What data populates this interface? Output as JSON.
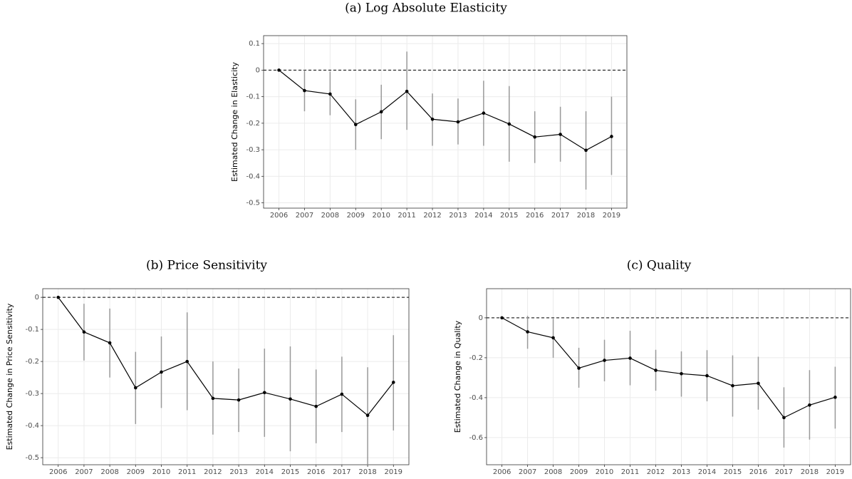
{
  "chart_data": [
    {
      "type": "line",
      "title": "(a) Log Absolute Elasticity",
      "y_label": "Estimated Change in Elasticity",
      "x": [
        2006,
        2007,
        2008,
        2009,
        2010,
        2011,
        2012,
        2013,
        2014,
        2015,
        2016,
        2017,
        2018,
        2019
      ],
      "series": [
        {
          "color": "#000000",
          "error_color": "#999999",
          "values": [
            0,
            -0.077,
            -0.09,
            -0.205,
            -0.157,
            -0.08,
            -0.185,
            -0.195,
            -0.162,
            -0.203,
            -0.252,
            -0.242,
            -0.302,
            -0.25
          ],
          "lower": [
            0,
            -0.155,
            -0.17,
            -0.3,
            -0.26,
            -0.225,
            -0.285,
            -0.28,
            -0.285,
            -0.345,
            -0.35,
            -0.345,
            -0.45,
            -0.395
          ],
          "upper": [
            0,
            0,
            -0.005,
            -0.11,
            -0.055,
            0.07,
            -0.088,
            -0.107,
            -0.04,
            -0.06,
            -0.155,
            -0.138,
            -0.155,
            -0.1
          ]
        }
      ],
      "xlim": [
        2005.4,
        2019.6
      ],
      "xticks": [
        2006,
        2007,
        2008,
        2009,
        2010,
        2011,
        2012,
        2013,
        2014,
        2015,
        2016,
        2017,
        2018,
        2019
      ],
      "ylim": [
        -0.52,
        0.13
      ],
      "yticks": [
        0.1,
        0,
        -0.1,
        -0.2,
        -0.3,
        -0.4,
        -0.5
      ],
      "reference_line": 0,
      "grid": true
    },
    {
      "type": "line",
      "title": "(b) Price Sensitivity",
      "y_label": "Estimated Change in Price Sensitivity",
      "x": [
        2006,
        2007,
        2008,
        2009,
        2010,
        2011,
        2012,
        2013,
        2014,
        2015,
        2016,
        2017,
        2018,
        2019
      ],
      "series": [
        {
          "color": "#000000",
          "error_color": "#999999",
          "values": [
            0,
            -0.108,
            -0.142,
            -0.282,
            -0.233,
            -0.2,
            -0.315,
            -0.32,
            -0.297,
            -0.317,
            -0.34,
            -0.302,
            -0.368,
            -0.265
          ],
          "lower": [
            0,
            -0.197,
            -0.25,
            -0.395,
            -0.345,
            -0.352,
            -0.428,
            -0.42,
            -0.435,
            -0.48,
            -0.455,
            -0.42,
            -0.52,
            -0.415
          ],
          "upper": [
            0,
            -0.02,
            -0.035,
            -0.17,
            -0.122,
            -0.047,
            -0.2,
            -0.222,
            -0.16,
            -0.153,
            -0.225,
            -0.185,
            -0.218,
            -0.118
          ]
        }
      ],
      "xlim": [
        2005.4,
        2019.6
      ],
      "xticks": [
        2006,
        2007,
        2008,
        2009,
        2010,
        2011,
        2012,
        2013,
        2014,
        2015,
        2016,
        2017,
        2018,
        2019
      ],
      "ylim": [
        -0.522,
        0.027
      ],
      "yticks": [
        0,
        -0.1,
        -0.2,
        -0.3,
        -0.4,
        -0.5
      ],
      "reference_line": 0,
      "grid": true
    },
    {
      "type": "line",
      "title": "(c) Quality",
      "y_label": "Estimated Change in Quality",
      "x": [
        2006,
        2007,
        2008,
        2009,
        2010,
        2011,
        2012,
        2013,
        2014,
        2015,
        2016,
        2017,
        2018,
        2019
      ],
      "series": [
        {
          "color": "#000000",
          "error_color": "#999999",
          "values": [
            0,
            -0.07,
            -0.1,
            -0.252,
            -0.213,
            -0.202,
            -0.263,
            -0.28,
            -0.29,
            -0.34,
            -0.328,
            -0.5,
            -0.437,
            -0.398
          ],
          "lower": [
            0,
            -0.155,
            -0.2,
            -0.35,
            -0.318,
            -0.338,
            -0.365,
            -0.395,
            -0.418,
            -0.495,
            -0.46,
            -0.65,
            -0.61,
            -0.555
          ],
          "upper": [
            0,
            0.01,
            -0.005,
            -0.15,
            -0.11,
            -0.065,
            -0.16,
            -0.168,
            -0.162,
            -0.188,
            -0.195,
            -0.348,
            -0.262,
            -0.245
          ]
        }
      ],
      "xlim": [
        2005.4,
        2019.6
      ],
      "xticks": [
        2006,
        2007,
        2008,
        2009,
        2010,
        2011,
        2012,
        2013,
        2014,
        2015,
        2016,
        2017,
        2018,
        2019
      ],
      "ylim": [
        -0.736,
        0.146
      ],
      "yticks": [
        0,
        -0.2,
        -0.4,
        -0.6
      ],
      "reference_line": 0,
      "grid": true
    }
  ]
}
